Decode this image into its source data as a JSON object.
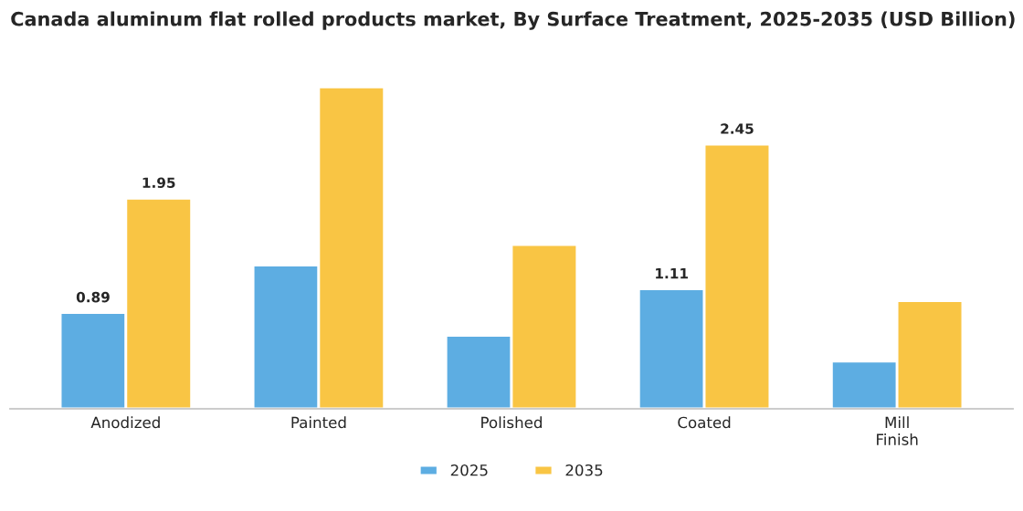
{
  "chart_data": {
    "type": "bar",
    "title": "Canada aluminum flat rolled products market, By Surface Treatment, 2025-2035 (USD Billion)",
    "categories": [
      "Anodized",
      "Painted",
      "Polished",
      "Coated",
      "Mill\nFinish"
    ],
    "series": [
      {
        "name": "2025",
        "color": "#5dade2",
        "values": [
          0.89,
          1.33,
          0.68,
          1.11,
          0.44
        ],
        "value_labels": [
          "0.89",
          null,
          null,
          "1.11",
          null
        ]
      },
      {
        "name": "2035",
        "color": "#f9c544",
        "values": [
          1.95,
          2.98,
          1.52,
          2.45,
          1.0
        ],
        "value_labels": [
          "1.95",
          null,
          null,
          "2.45",
          null
        ]
      }
    ],
    "legend": "bottom",
    "grid": false
  }
}
